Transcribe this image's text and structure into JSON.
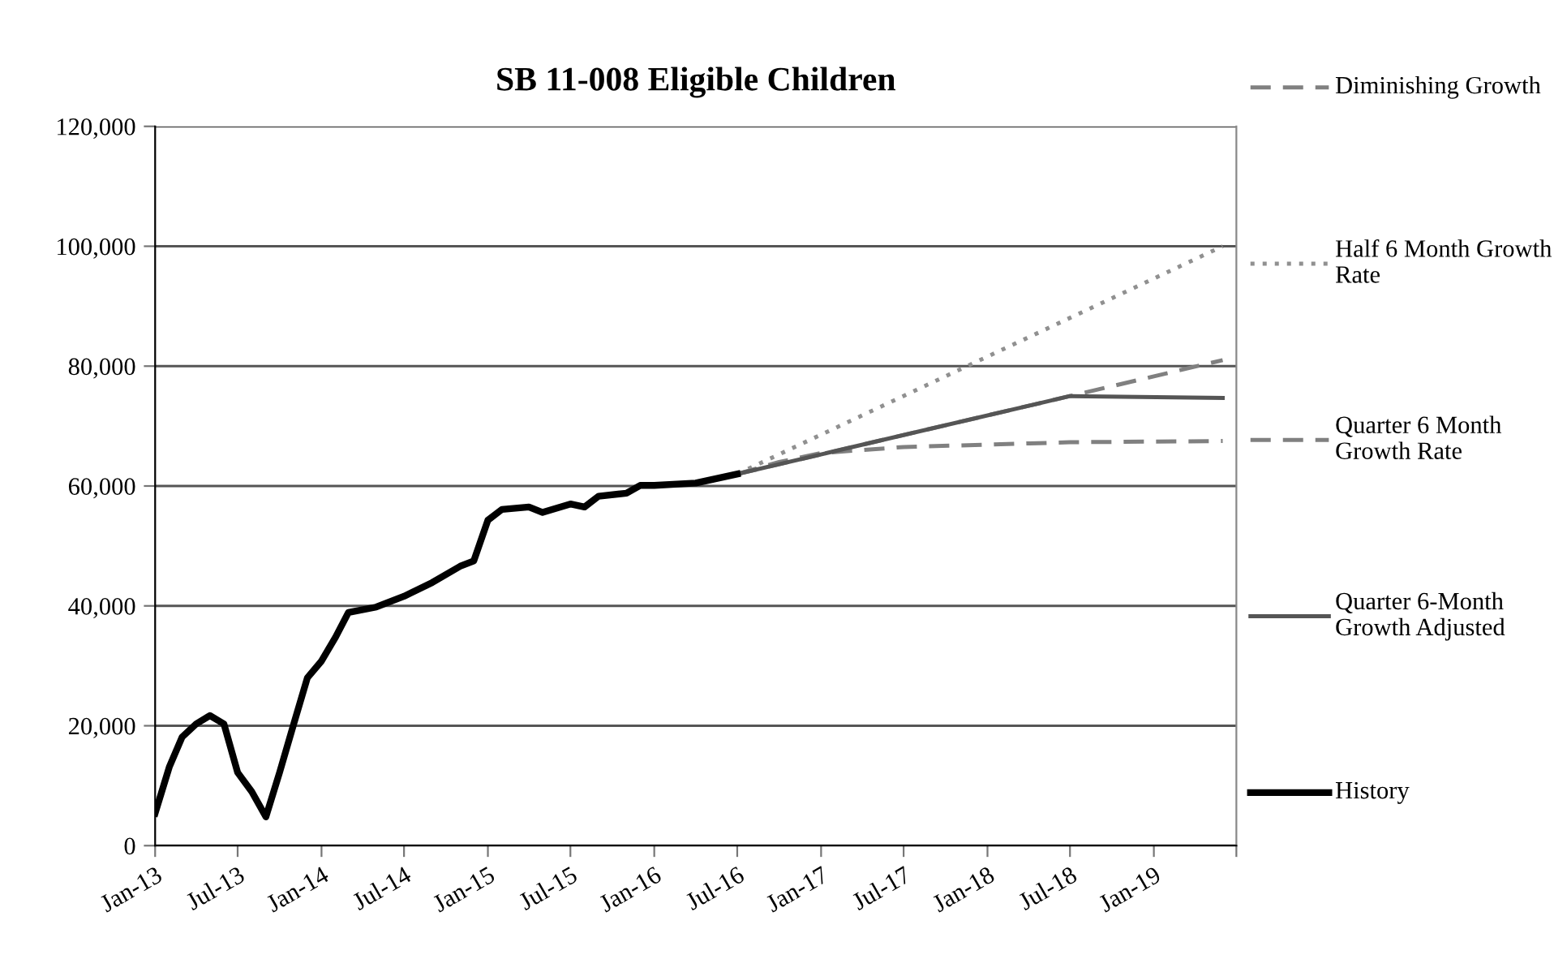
{
  "chart_data": {
    "type": "line",
    "title": "SB 11-008 Eligible Children",
    "xlim": [
      "2013-01",
      "2019-07"
    ],
    "xticks": [
      {
        "value": "2013-01",
        "label": "Jan-13"
      },
      {
        "value": "2013-07",
        "label": "Jul-13"
      },
      {
        "value": "2014-01",
        "label": "Jan-14"
      },
      {
        "value": "2014-07",
        "label": "Jul-14"
      },
      {
        "value": "2015-01",
        "label": "Jan-15"
      },
      {
        "value": "2015-07",
        "label": "Jul-15"
      },
      {
        "value": "2016-01",
        "label": "Jan-16"
      },
      {
        "value": "2016-07",
        "label": "Jul-16"
      },
      {
        "value": "2017-01",
        "label": "Jan-17"
      },
      {
        "value": "2017-07",
        "label": "Jul-17"
      },
      {
        "value": "2018-01",
        "label": "Jan-18"
      },
      {
        "value": "2018-07",
        "label": "Jul-18"
      },
      {
        "value": "2019-01",
        "label": "Jan-19"
      },
      {
        "value": "2019-07",
        "label": null
      }
    ],
    "ylim": [
      0,
      120000
    ],
    "yticks": [
      {
        "value": 0,
        "label": "0"
      },
      {
        "value": 20000,
        "label": "20,000"
      },
      {
        "value": 40000,
        "label": "40,000"
      },
      {
        "value": 60000,
        "label": "60,000"
      },
      {
        "value": 80000,
        "label": "80,000"
      },
      {
        "value": 100000,
        "label": "100,000"
      },
      {
        "value": 120000,
        "label": "120,000"
      }
    ],
    "grid": "y",
    "legend": "right",
    "marker": "none",
    "series": [
      {
        "name": "Diminishing Growth",
        "color": "#808080",
        "line_style": "dashed",
        "x": [
          "2016-07",
          "2016-10",
          "2017-01",
          "2017-07",
          "2018-07",
          "2019-06"
        ],
        "values": [
          62000,
          64000,
          65500,
          66500,
          67300,
          67500
        ]
      },
      {
        "name": "Half 6 Month Growth Rate",
        "color": "#909090",
        "line_style": "dotted",
        "x": [
          "2016-07",
          "2019-06"
        ],
        "values": [
          62000,
          100000
        ]
      },
      {
        "name": "Quarter 6 Month Growth Rate",
        "color": "#808080",
        "line_style": "dashed",
        "x": [
          "2016-07",
          "2018-07",
          "2019-06"
        ],
        "values": [
          62000,
          75000,
          81000
        ]
      },
      {
        "name": "Quarter 6-Month Growth Adjusted",
        "color": "#555555",
        "line_style": "solid",
        "x": [
          "2016-07",
          "2018-07",
          "2019-06"
        ],
        "values": [
          62000,
          75000,
          74700
        ]
      },
      {
        "name": "History",
        "color": "#000000",
        "line_style": "solid",
        "x": [
          "2013-01",
          "2013-02",
          "2013-03",
          "2013-04",
          "2013-05",
          "2013-06",
          "2013-07",
          "2013-08",
          "2013-09",
          "2013-10",
          "2013-11",
          "2013-12",
          "2014-01",
          "2014-02",
          "2014-03",
          "2014-05",
          "2014-07",
          "2014-09",
          "2014-11",
          "2014-12",
          "2015-01",
          "2015-02",
          "2015-04",
          "2015-05",
          "2015-07",
          "2015-08",
          "2015-09",
          "2015-11",
          "2015-12",
          "2016-01",
          "2016-04",
          "2016-07"
        ],
        "values": [
          5400,
          13100,
          18100,
          20300,
          21700,
          20300,
          12200,
          9000,
          4800,
          12200,
          20300,
          28000,
          30800,
          34800,
          38900,
          39800,
          41600,
          43900,
          46600,
          47500,
          54300,
          56100,
          56500,
          55600,
          57000,
          56500,
          58300,
          58800,
          60100,
          60100,
          60500,
          62000
        ]
      }
    ]
  }
}
